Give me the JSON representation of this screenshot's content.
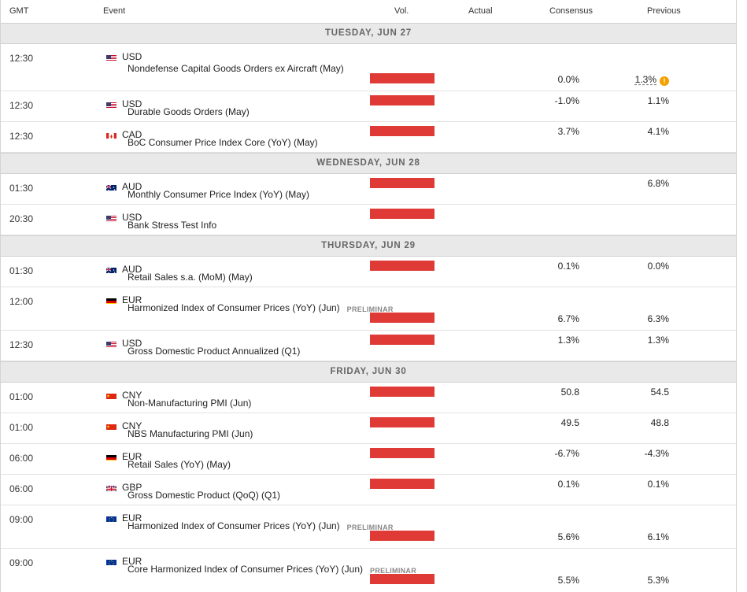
{
  "header": {
    "gmt": "GMT",
    "event": "Event",
    "vol": "Vol.",
    "actual": "Actual",
    "consensus": "Consensus",
    "previous": "Previous"
  },
  "dates": [
    "TUESDAY, JUN 27",
    "WEDNESDAY, JUN 28",
    "THURSDAY, JUN 29",
    "FRIDAY, JUN 30"
  ],
  "events": [
    {
      "time": "12:30",
      "currency": "USD",
      "flag": "us-flag-icon",
      "name": "Nondefense Capital Goods Orders ex Aircraft (May)",
      "prelim": "",
      "actual": "",
      "consensus": "0.0%",
      "previous": "1.3%",
      "revised_icon": "warning-icon",
      "revised_glyph": "!"
    },
    {
      "time": "12:30",
      "currency": "USD",
      "flag": "us-flag-icon",
      "name": "Durable Goods Orders (May)",
      "prelim": "",
      "actual": "",
      "consensus": "-1.0%",
      "previous": "1.1%"
    },
    {
      "time": "12:30",
      "currency": "CAD",
      "flag": "ca-flag-icon",
      "name": "BoC Consumer Price Index Core (YoY) (May)",
      "prelim": "",
      "actual": "",
      "consensus": "3.7%",
      "previous": "4.1%"
    },
    {
      "time": "01:30",
      "currency": "AUD",
      "flag": "au-flag-icon",
      "name": "Monthly Consumer Price Index (YoY) (May)",
      "prelim": "",
      "actual": "",
      "consensus": "",
      "previous": "6.8%"
    },
    {
      "time": "20:30",
      "currency": "USD",
      "flag": "us-flag-icon",
      "name": "Bank Stress Test Info",
      "prelim": "",
      "actual": "",
      "consensus": "",
      "previous": ""
    },
    {
      "time": "01:30",
      "currency": "AUD",
      "flag": "au-flag-icon",
      "name": "Retail Sales s.a. (MoM) (May)",
      "prelim": "",
      "actual": "",
      "consensus": "0.1%",
      "previous": "0.0%"
    },
    {
      "time": "12:00",
      "currency": "EUR",
      "flag": "de-flag-icon",
      "name": "Harmonized Index of Consumer Prices (YoY) (Jun)",
      "prelim": "PRELIMINAR",
      "actual": "",
      "consensus": "6.7%",
      "previous": "6.3%"
    },
    {
      "time": "12:30",
      "currency": "USD",
      "flag": "us-flag-icon",
      "name": "Gross Domestic Product Annualized (Q1)",
      "prelim": "",
      "actual": "",
      "consensus": "1.3%",
      "previous": "1.3%"
    },
    {
      "time": "01:00",
      "currency": "CNY",
      "flag": "cn-flag-icon",
      "name": "Non-Manufacturing PMI (Jun)",
      "prelim": "",
      "actual": "",
      "consensus": "50.8",
      "previous": "54.5"
    },
    {
      "time": "01:00",
      "currency": "CNY",
      "flag": "cn-flag-icon",
      "name": "NBS Manufacturing PMI (Jun)",
      "prelim": "",
      "actual": "",
      "consensus": "49.5",
      "previous": "48.8"
    },
    {
      "time": "06:00",
      "currency": "EUR",
      "flag": "de-flag-icon",
      "name": "Retail Sales (YoY) (May)",
      "prelim": "",
      "actual": "",
      "consensus": "-6.7%",
      "previous": "-4.3%"
    },
    {
      "time": "06:00",
      "currency": "GBP",
      "flag": "gb-flag-icon",
      "name": "Gross Domestic Product (QoQ) (Q1)",
      "prelim": "",
      "actual": "",
      "consensus": "0.1%",
      "previous": "0.1%"
    },
    {
      "time": "09:00",
      "currency": "EUR",
      "flag": "eu-flag-icon",
      "name": "Harmonized Index of Consumer Prices (YoY) (Jun)",
      "prelim": "PRELIMINAR",
      "actual": "",
      "consensus": "5.6%",
      "previous": "6.1%"
    },
    {
      "time": "09:00",
      "currency": "EUR",
      "flag": "eu-flag-icon",
      "name": "Core Harmonized Index of Consumer Prices (YoY) (Jun)",
      "prelim": "PRELIMINAR",
      "actual": "",
      "consensus": "5.5%",
      "previous": "5.3%"
    }
  ],
  "colors": {
    "volatility_bar": "#e03a36",
    "date_row_bg": "#e9e9e9",
    "revised_warning": "#f2a100"
  }
}
